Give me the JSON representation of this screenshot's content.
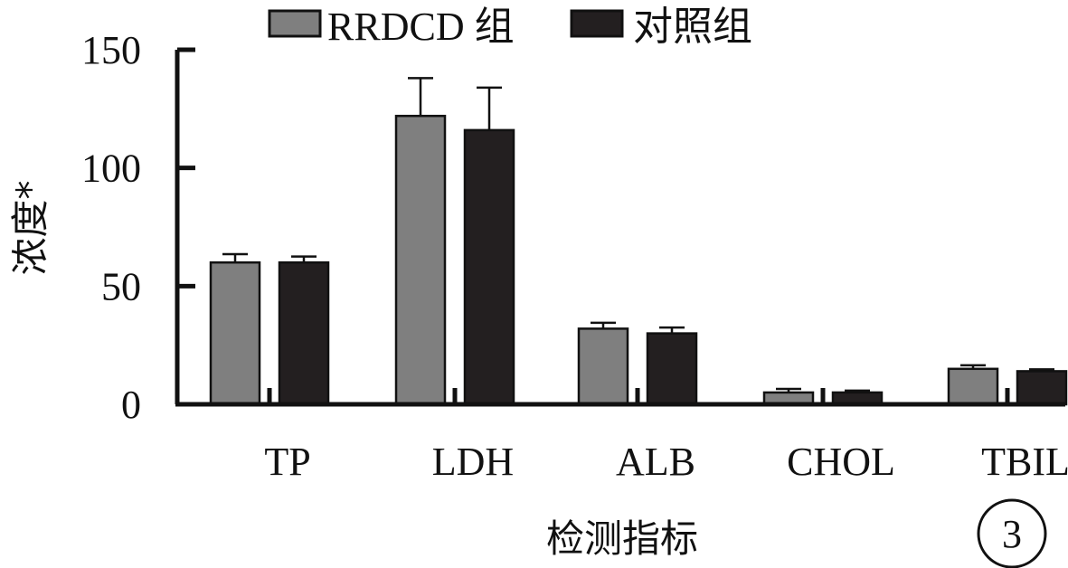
{
  "chart_data": {
    "type": "bar",
    "categories": [
      "TP",
      "LDH",
      "ALB",
      "CHOL",
      "TBIL"
    ],
    "series": [
      {
        "name": "RRDCD 组",
        "color": "#7f7f7f",
        "values": [
          60,
          122,
          32,
          5,
          15
        ],
        "errors": [
          3.5,
          16,
          2.5,
          1.5,
          1.5
        ]
      },
      {
        "name": "对照组",
        "color": "#231f20",
        "values": [
          60,
          116,
          30,
          5,
          14
        ],
        "errors": [
          2.5,
          18,
          2.5,
          0.8,
          0.8
        ]
      }
    ],
    "ylabel": "浓度*",
    "xlabel": "检测指标",
    "ylim": [
      0,
      150
    ],
    "yticks": [
      0,
      50,
      100,
      150
    ],
    "legend_position": "top",
    "panel_label": "3"
  }
}
